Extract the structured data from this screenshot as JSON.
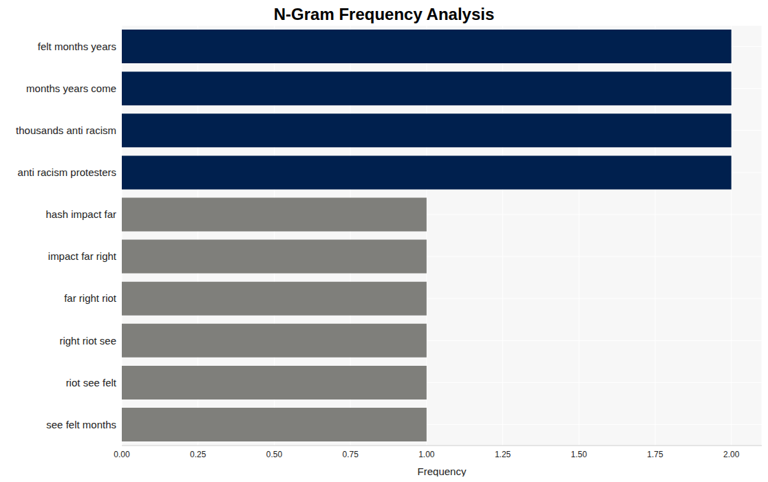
{
  "chart_data": {
    "type": "bar",
    "title": "N-Gram Frequency Analysis",
    "x_label": "Frequency",
    "orientation": "horizontal",
    "categories": [
      "felt months years",
      "months years come",
      "thousands anti racism",
      "anti racism protesters",
      "hash impact far",
      "impact far right",
      "far right riot",
      "right riot see",
      "riot see felt",
      "see felt months"
    ],
    "values": [
      2,
      2,
      2,
      2,
      1,
      1,
      1,
      1,
      1,
      1
    ],
    "colors": [
      "#00204e",
      "#00204e",
      "#00204e",
      "#00204e",
      "#7f7f7b",
      "#7f7f7b",
      "#7f7f7b",
      "#7f7f7b",
      "#7f7f7b",
      "#7f7f7b"
    ],
    "xlim": [
      0,
      2.1
    ],
    "xticks": [
      {
        "value": 0,
        "label": "0.00"
      },
      {
        "value": 0.25,
        "label": "0.25"
      },
      {
        "value": 0.5,
        "label": "0.50"
      },
      {
        "value": 0.75,
        "label": "0.75"
      },
      {
        "value": 1,
        "label": "1.00"
      },
      {
        "value": 1.25,
        "label": "1.25"
      },
      {
        "value": 1.5,
        "label": "1.50"
      },
      {
        "value": 1.75,
        "label": "1.75"
      },
      {
        "value": 2,
        "label": "2.00"
      }
    ],
    "grid": true
  }
}
